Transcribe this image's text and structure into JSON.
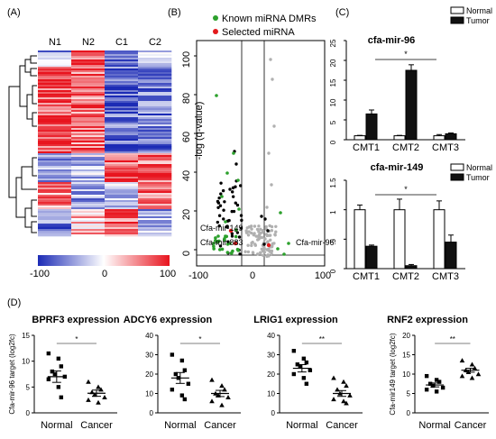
{
  "panel_labels": {
    "a": "(A)",
    "b": "(B)",
    "c": "(C)",
    "d": "(D)"
  },
  "colors": {
    "high": "#e8141e",
    "mid": "#ffffff",
    "low": "#1c2bb5",
    "known": "#2ca02c",
    "selected": "#e31a1c",
    "background_points": "#b0b0b0"
  },
  "heatmap": {
    "columns": [
      "N1",
      "N2",
      "C1",
      "C2"
    ],
    "colorbar_ticks": [
      "-100",
      "0",
      "100"
    ]
  },
  "volcano": {
    "legend": {
      "known": "Known miRNA DMRs",
      "selected": "Selected miRNA"
    },
    "ylabel": "-log (q-value)",
    "yticks": [
      "0",
      "20",
      "40",
      "60",
      "80",
      "100"
    ],
    "xticks": [
      "-100",
      "0",
      "100"
    ],
    "annotations": [
      "Cfa-mir-149",
      "Cfa-mir-883",
      "Cfa-mir-96"
    ]
  },
  "chart_data": [
    {
      "type": "bar",
      "title": "cfa-mir-96",
      "categories": [
        "CMT1",
        "CMT2",
        "CMT3"
      ],
      "series": [
        {
          "name": "Normal",
          "values": [
            1,
            1,
            1
          ],
          "errors": [
            0.1,
            0.1,
            0.3
          ]
        },
        {
          "name": "Tumor",
          "values": [
            6.5,
            17.5,
            1.5
          ],
          "errors": [
            1.0,
            1.4,
            0.2
          ]
        }
      ],
      "ylim": [
        0,
        25
      ],
      "yticks": [
        "0",
        "5",
        "10",
        "15",
        "20",
        "25"
      ],
      "significance": "*",
      "legend": "top-right"
    },
    {
      "type": "bar",
      "title": "cfa-mir-149",
      "categories": [
        "CMT1",
        "CMT2",
        "CMT3"
      ],
      "series": [
        {
          "name": "Normal",
          "values": [
            1,
            1,
            1
          ],
          "errors": [
            0.08,
            0.18,
            0.15
          ]
        },
        {
          "name": "Tumor",
          "values": [
            0.38,
            0.05,
            0.45
          ],
          "errors": [
            0.02,
            0.02,
            0.12
          ]
        }
      ],
      "ylim": [
        0,
        1.5
      ],
      "yticks": [
        "0",
        ".5",
        "1",
        "1.5"
      ],
      "significance": "*",
      "legend": "top-right"
    },
    {
      "type": "scatter",
      "title": "BPRF3 expression",
      "ylabel": "Cfa-mir-96 target (log2fc)",
      "categories": [
        "Normal",
        "Cancer"
      ],
      "ylim": [
        0,
        15
      ],
      "yticks": [
        "0",
        "5",
        "10",
        "15"
      ],
      "series": [
        {
          "name": "Normal",
          "values": [
            11.5,
            10.5,
            9,
            8,
            7.5,
            7,
            6.5,
            5,
            3
          ],
          "mean": 7,
          "sem": 1.1
        },
        {
          "name": "Cancer",
          "values": [
            6,
            5,
            4.5,
            4,
            3.5,
            3,
            2.5,
            2
          ],
          "mean": 3.8,
          "sem": 0.6
        }
      ],
      "significance": "*"
    },
    {
      "type": "scatter",
      "title": "ADCY6 expression",
      "categories": [
        "Normal",
        "Cancer"
      ],
      "ylim": [
        0,
        40
      ],
      "yticks": [
        "0",
        "10",
        "20",
        "30",
        "40"
      ],
      "series": [
        {
          "name": "Normal",
          "values": [
            30,
            27,
            22,
            20,
            18,
            15,
            12,
            9,
            7
          ],
          "mean": 18,
          "sem": 2.8
        },
        {
          "name": "Cancer",
          "values": [
            17,
            14,
            12,
            10,
            9,
            8,
            6,
            4
          ],
          "mean": 10,
          "sem": 1.6
        }
      ],
      "significance": "*"
    },
    {
      "type": "scatter",
      "title": "LRIG1 expression",
      "categories": [
        "Normal",
        "Cancer"
      ],
      "ylim": [
        0,
        40
      ],
      "yticks": [
        "0",
        "10",
        "20",
        "30",
        "40"
      ],
      "series": [
        {
          "name": "Normal",
          "values": [
            32,
            28,
            26,
            25,
            24,
            22,
            20,
            18,
            15
          ],
          "mean": 23,
          "sem": 1.9
        },
        {
          "name": "Cancer",
          "values": [
            18,
            16,
            14,
            12,
            10,
            9,
            7,
            6,
            5
          ],
          "mean": 10,
          "sem": 1.5
        }
      ],
      "significance": "**"
    },
    {
      "type": "scatter",
      "title": "RNF2 expression",
      "ylabel": "Cfa-mir149 target (log2fc)",
      "categories": [
        "Normal",
        "Cancer"
      ],
      "ylim": [
        0,
        20
      ],
      "yticks": [
        "0",
        "5",
        "10",
        "15",
        "20"
      ],
      "series": [
        {
          "name": "Normal",
          "values": [
            9.5,
            8.5,
            8,
            7.5,
            7,
            6.5,
            6,
            5.5
          ],
          "mean": 7.2,
          "sem": 0.5
        },
        {
          "name": "Cancer",
          "values": [
            13.5,
            12.5,
            11.5,
            11,
            10.5,
            10,
            9.5,
            9
          ],
          "mean": 11,
          "sem": 0.5
        }
      ],
      "significance": "**"
    }
  ]
}
